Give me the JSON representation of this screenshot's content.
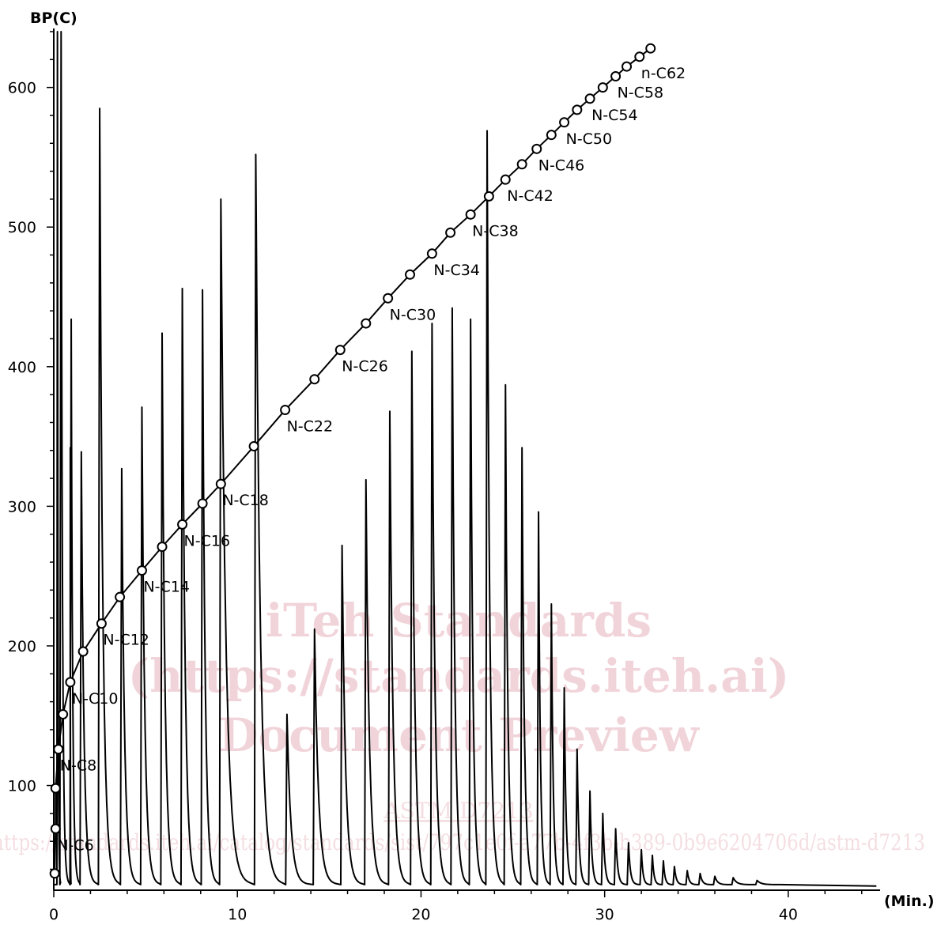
{
  "chart_data": {
    "type": "line",
    "title": "",
    "xlabel": "(Min.)",
    "ylabel": "BP(C)",
    "xlim": [
      0,
      45
    ],
    "ylim": [
      25,
      640
    ],
    "x_ticks": [
      0,
      10,
      20,
      30,
      40
    ],
    "y_ticks": [
      100,
      200,
      300,
      400,
      500,
      600
    ],
    "grid": false,
    "legend": "none",
    "series": [
      {
        "kind": "chromatogram",
        "baseline": 29,
        "peaks": [
          {
            "x": 0.2,
            "y": 640
          },
          {
            "x": 0.4,
            "y": 640
          },
          {
            "x": 0.9,
            "y": 342
          },
          {
            "x": 0.95,
            "y": 434
          },
          {
            "x": 1.5,
            "y": 339
          },
          {
            "x": 2.5,
            "y": 585
          },
          {
            "x": 3.7,
            "y": 327
          },
          {
            "x": 4.8,
            "y": 371
          },
          {
            "x": 5.9,
            "y": 424
          },
          {
            "x": 7.0,
            "y": 456
          },
          {
            "x": 8.1,
            "y": 455
          },
          {
            "x": 9.1,
            "y": 520
          },
          {
            "x": 11.0,
            "y": 552
          },
          {
            "x": 12.7,
            "y": 151
          },
          {
            "x": 14.2,
            "y": 212
          },
          {
            "x": 15.7,
            "y": 272
          },
          {
            "x": 17.0,
            "y": 319
          },
          {
            "x": 18.3,
            "y": 368
          },
          {
            "x": 19.5,
            "y": 411
          },
          {
            "x": 20.6,
            "y": 431
          },
          {
            "x": 21.7,
            "y": 442
          },
          {
            "x": 22.7,
            "y": 434
          },
          {
            "x": 23.6,
            "y": 569
          },
          {
            "x": 24.6,
            "y": 387
          },
          {
            "x": 25.5,
            "y": 342
          },
          {
            "x": 26.4,
            "y": 296
          },
          {
            "x": 27.1,
            "y": 230
          },
          {
            "x": 27.8,
            "y": 170
          },
          {
            "x": 28.5,
            "y": 126
          },
          {
            "x": 29.2,
            "y": 96
          },
          {
            "x": 29.9,
            "y": 80
          },
          {
            "x": 30.6,
            "y": 69
          },
          {
            "x": 31.3,
            "y": 59
          },
          {
            "x": 32.0,
            "y": 54
          },
          {
            "x": 32.6,
            "y": 50
          },
          {
            "x": 33.2,
            "y": 46
          },
          {
            "x": 33.8,
            "y": 42
          },
          {
            "x": 34.5,
            "y": 39
          },
          {
            "x": 35.2,
            "y": 37
          },
          {
            "x": 36.0,
            "y": 35
          },
          {
            "x": 37.0,
            "y": 34
          },
          {
            "x": 38.3,
            "y": 32
          }
        ]
      },
      {
        "kind": "calibration",
        "points": [
          {
            "x": 0.05,
            "y": 37
          },
          {
            "x": 0.1,
            "y": 69
          },
          {
            "x": 0.1,
            "y": 98
          },
          {
            "x": 0.25,
            "y": 126
          },
          {
            "x": 0.5,
            "y": 151
          },
          {
            "x": 0.9,
            "y": 174
          },
          {
            "x": 1.6,
            "y": 196
          },
          {
            "x": 2.6,
            "y": 216
          },
          {
            "x": 3.6,
            "y": 235
          },
          {
            "x": 4.8,
            "y": 254
          },
          {
            "x": 5.9,
            "y": 271
          },
          {
            "x": 7.0,
            "y": 287
          },
          {
            "x": 8.1,
            "y": 302
          },
          {
            "x": 9.1,
            "y": 316
          },
          {
            "x": 10.9,
            "y": 343
          },
          {
            "x": 12.6,
            "y": 369
          },
          {
            "x": 14.2,
            "y": 391
          },
          {
            "x": 15.6,
            "y": 412
          },
          {
            "x": 17.0,
            "y": 431
          },
          {
            "x": 18.2,
            "y": 449
          },
          {
            "x": 19.4,
            "y": 466
          },
          {
            "x": 20.6,
            "y": 481
          },
          {
            "x": 21.6,
            "y": 496
          },
          {
            "x": 22.7,
            "y": 509
          },
          {
            "x": 23.7,
            "y": 522
          },
          {
            "x": 24.6,
            "y": 534
          },
          {
            "x": 25.5,
            "y": 545
          },
          {
            "x": 26.3,
            "y": 556
          },
          {
            "x": 27.1,
            "y": 566
          },
          {
            "x": 27.8,
            "y": 575
          },
          {
            "x": 28.5,
            "y": 584
          },
          {
            "x": 29.2,
            "y": 592
          },
          {
            "x": 29.9,
            "y": 600
          },
          {
            "x": 30.6,
            "y": 608
          },
          {
            "x": 31.2,
            "y": 615
          },
          {
            "x": 31.9,
            "y": 622
          },
          {
            "x": 32.5,
            "y": 628
          }
        ],
        "labels": [
          {
            "text": "N-C6",
            "x": 0.1,
            "y": 69
          },
          {
            "text": "N-C8",
            "x": 0.25,
            "y": 126
          },
          {
            "text": "N-C10",
            "x": 0.9,
            "y": 174
          },
          {
            "text": "N-C12",
            "x": 2.6,
            "y": 216
          },
          {
            "text": "N-C14",
            "x": 4.8,
            "y": 254
          },
          {
            "text": "N-C16",
            "x": 7.0,
            "y": 287
          },
          {
            "text": "N-C18",
            "x": 9.1,
            "y": 316
          },
          {
            "text": "N-C22",
            "x": 12.6,
            "y": 369
          },
          {
            "text": "N-C26",
            "x": 15.6,
            "y": 412
          },
          {
            "text": "N-C30",
            "x": 18.2,
            "y": 449
          },
          {
            "text": "N-C34",
            "x": 20.6,
            "y": 481
          },
          {
            "text": "N-C38",
            "x": 22.7,
            "y": 509
          },
          {
            "text": "N-C42",
            "x": 24.6,
            "y": 534
          },
          {
            "text": "N-C46",
            "x": 26.3,
            "y": 556
          },
          {
            "text": "N-C50",
            "x": 27.8,
            "y": 575
          },
          {
            "text": "N-C54",
            "x": 29.2,
            "y": 592
          },
          {
            "text": "N-C58",
            "x": 30.6,
            "y": 608
          },
          {
            "text": "n-C62",
            "x": 31.9,
            "y": 622
          }
        ]
      }
    ]
  },
  "watermark": {
    "line1": "iTeh Standards",
    "line2": "(https://standards.iteh.ai)",
    "line3": "Document Preview",
    "line4": "ASTM D7213",
    "line5": "https://standards.iteh.ai/catalog/standards/sist/797c1e0f-a77b-4f3b-b389-0b9e6204706d/astm-d7213"
  }
}
